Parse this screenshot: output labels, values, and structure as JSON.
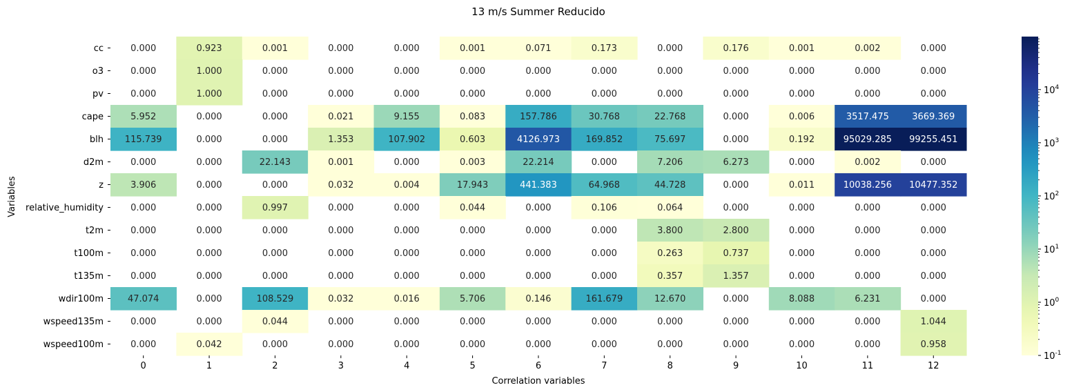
{
  "chart_data": {
    "type": "heatmap",
    "title": "13 m/s Summer Reducido",
    "xlabel": "Correlation variables",
    "ylabel": "Variables",
    "x_categories": [
      "0",
      "1",
      "2",
      "3",
      "4",
      "5",
      "6",
      "7",
      "8",
      "9",
      "10",
      "11",
      "12"
    ],
    "y_categories": [
      "cc",
      "o3",
      "pv",
      "cape",
      "blh",
      "d2m",
      "z",
      "relative_humidity",
      "t2m",
      "t100m",
      "t135m",
      "wdir100m",
      "wspeed135m",
      "wspeed100m"
    ],
    "values": [
      [
        0.0,
        0.923,
        0.001,
        0.0,
        0.0,
        0.001,
        0.071,
        0.173,
        0.0,
        0.176,
        0.001,
        0.002,
        0.0
      ],
      [
        0.0,
        1.0,
        0.0,
        0.0,
        0.0,
        0.0,
        0.0,
        0.0,
        0.0,
        0.0,
        0.0,
        0.0,
        0.0
      ],
      [
        0.0,
        1.0,
        0.0,
        0.0,
        0.0,
        0.0,
        0.0,
        0.0,
        0.0,
        0.0,
        0.0,
        0.0,
        0.0
      ],
      [
        5.952,
        0.0,
        0.0,
        0.021,
        9.155,
        0.083,
        157.786,
        30.768,
        22.768,
        0.0,
        0.006,
        3517.475,
        3669.369
      ],
      [
        115.739,
        0.0,
        0.0,
        1.353,
        107.902,
        0.603,
        4126.973,
        169.852,
        75.697,
        0.0,
        0.192,
        95029.285,
        99255.451
      ],
      [
        0.0,
        0.0,
        22.143,
        0.001,
        0.0,
        0.003,
        22.214,
        0.0,
        7.206,
        6.273,
        0.0,
        0.002,
        0.0
      ],
      [
        3.906,
        0.0,
        0.0,
        0.032,
        0.004,
        17.943,
        441.383,
        64.968,
        44.728,
        0.0,
        0.011,
        10038.256,
        10477.352
      ],
      [
        0.0,
        0.0,
        0.997,
        0.0,
        0.0,
        0.044,
        0.0,
        0.106,
        0.064,
        0.0,
        0.0,
        0.0,
        0.0
      ],
      [
        0.0,
        0.0,
        0.0,
        0.0,
        0.0,
        0.0,
        0.0,
        0.0,
        3.8,
        2.8,
        0.0,
        0.0,
        0.0
      ],
      [
        0.0,
        0.0,
        0.0,
        0.0,
        0.0,
        0.0,
        0.0,
        0.0,
        0.263,
        0.737,
        0.0,
        0.0,
        0.0
      ],
      [
        0.0,
        0.0,
        0.0,
        0.0,
        0.0,
        0.0,
        0.0,
        0.0,
        0.357,
        1.357,
        0.0,
        0.0,
        0.0
      ],
      [
        47.074,
        0.0,
        108.529,
        0.032,
        0.016,
        5.706,
        0.146,
        161.679,
        12.67,
        0.0,
        8.088,
        6.231,
        0.0
      ],
      [
        0.0,
        0.0,
        0.044,
        0.0,
        0.0,
        0.0,
        0.0,
        0.0,
        0.0,
        0.0,
        0.0,
        0.0,
        1.044
      ],
      [
        0.0,
        0.042,
        0.0,
        0.0,
        0.0,
        0.0,
        0.0,
        0.0,
        0.0,
        0.0,
        0.0,
        0.0,
        0.958
      ]
    ],
    "color_scale": "log",
    "colormap": "YlGnBu",
    "vmin": 0.1,
    "vmax": 99255.451,
    "colorbar_ticks": [
      {
        "base": "10",
        "exp": "-1",
        "value": 0.1
      },
      {
        "base": "10",
        "exp": "0",
        "value": 1
      },
      {
        "base": "10",
        "exp": "1",
        "value": 10
      },
      {
        "base": "10",
        "exp": "2",
        "value": 100
      },
      {
        "base": "10",
        "exp": "3",
        "value": 1000
      },
      {
        "base": "10",
        "exp": "4",
        "value": 10000
      }
    ]
  }
}
